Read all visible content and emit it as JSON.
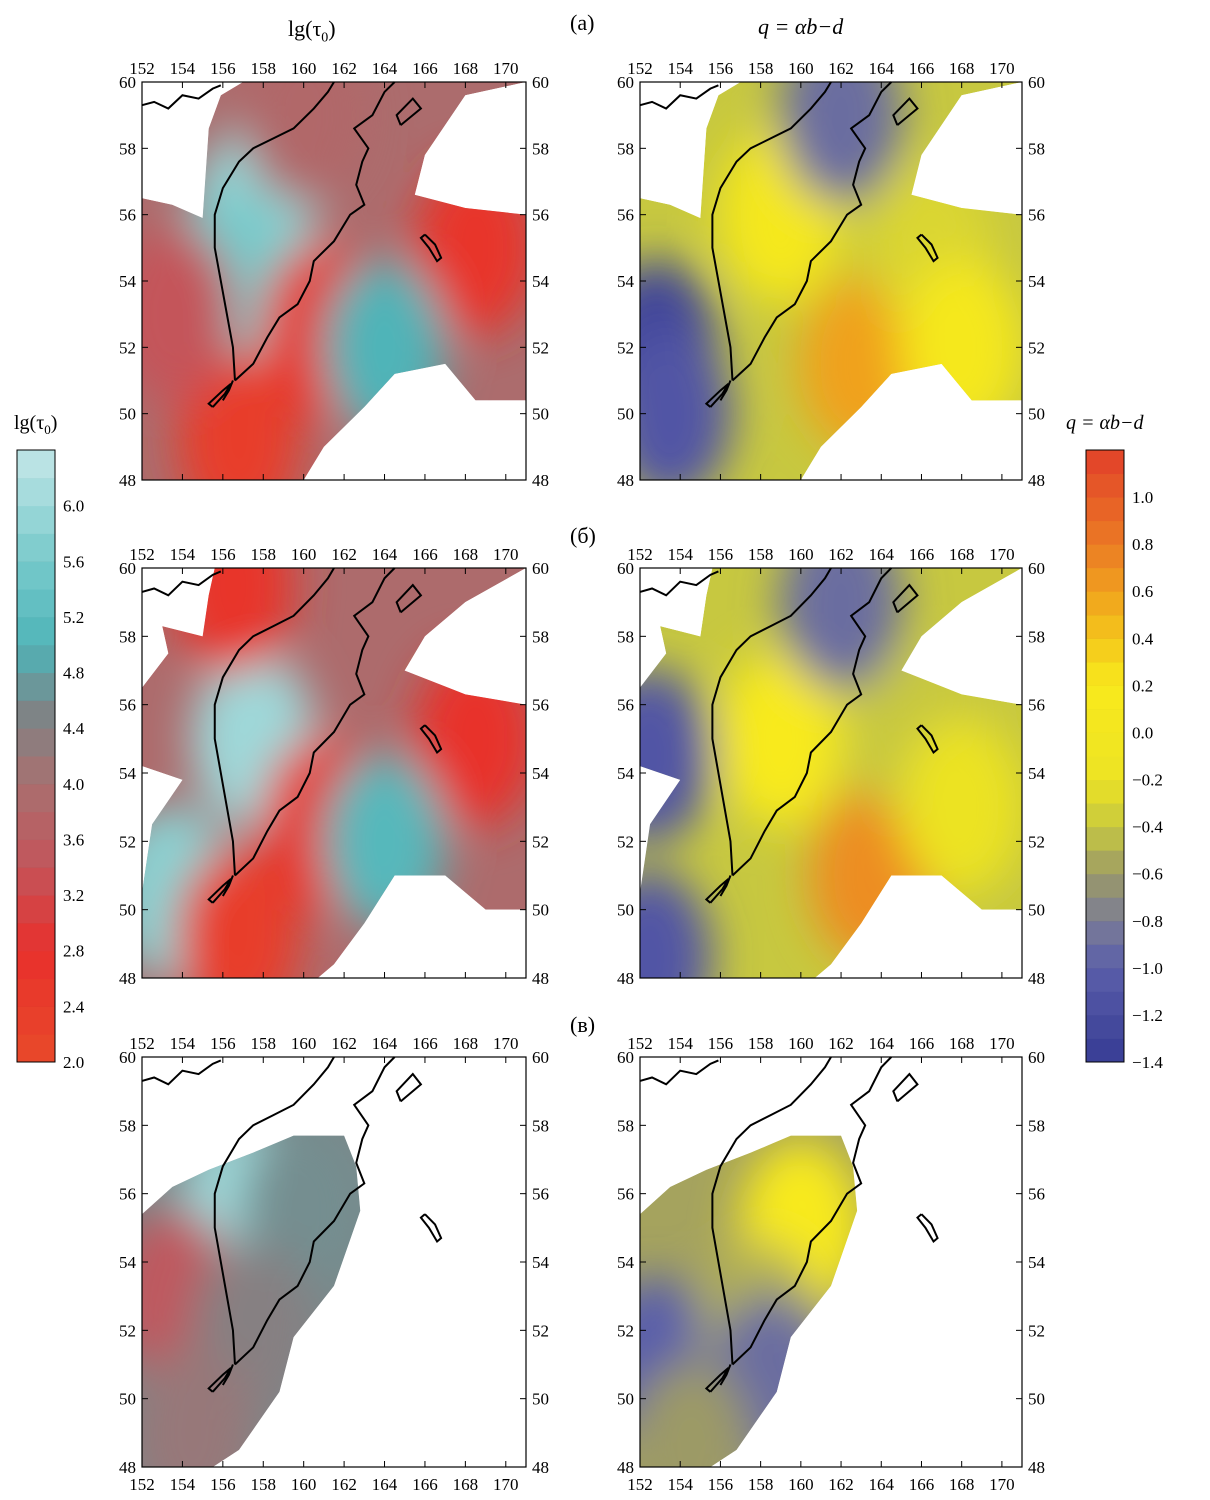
{
  "figure": {
    "column_titles": {
      "left": "lg(τ0)",
      "right": "q = αb−d"
    },
    "panel_labels": [
      "(a)",
      "(б)",
      "(в)"
    ]
  },
  "chart_data": [
    {
      "type": "heatmap",
      "id": "map-a-lgtau",
      "title": "lg(τ0)",
      "panel": "(a)",
      "xlabel": "",
      "ylabel": "",
      "xlim": [
        152,
        171
      ],
      "ylim": [
        48,
        60
      ],
      "x_ticks": [
        152,
        154,
        156,
        158,
        160,
        162,
        164,
        166,
        168,
        170
      ],
      "y_ticks": [
        48,
        50,
        52,
        54,
        56,
        58,
        60
      ],
      "colorbar": "lg(τ0)",
      "regions": [
        {
          "lon": 157.5,
          "lat": 56.0,
          "value": 5.9
        },
        {
          "lon": 156.5,
          "lat": 54.0,
          "value": 5.6
        },
        {
          "lon": 161.0,
          "lat": 52.5,
          "value": 2.6
        },
        {
          "lon": 168.5,
          "lat": 55.0,
          "value": 2.6
        },
        {
          "lon": 156.8,
          "lat": 49.2,
          "value": 2.4
        },
        {
          "lon": 164.0,
          "lat": 52.0,
          "value": 5.0
        },
        {
          "lon": 153.5,
          "lat": 53.0,
          "value": 3.4
        },
        {
          "lon": 160.0,
          "lat": 59.0,
          "value": 3.8
        }
      ]
    },
    {
      "type": "heatmap",
      "id": "map-a-q",
      "title": "q = αb−d",
      "panel": "(a)",
      "xlabel": "",
      "ylabel": "",
      "xlim": [
        152,
        171
      ],
      "ylim": [
        48,
        60
      ],
      "x_ticks": [
        152,
        154,
        156,
        158,
        160,
        162,
        164,
        166,
        168,
        170
      ],
      "y_ticks": [
        48,
        50,
        52,
        54,
        56,
        58,
        60
      ],
      "colorbar": "q = αb−d",
      "regions": [
        {
          "lon": 159.0,
          "lat": 56.0,
          "value": 0.1
        },
        {
          "lon": 152.8,
          "lat": 52.0,
          "value": -1.3
        },
        {
          "lon": 153.5,
          "lat": 50.0,
          "value": -1.1
        },
        {
          "lon": 163.0,
          "lat": 51.5,
          "value": 0.6
        },
        {
          "lon": 162.0,
          "lat": 59.0,
          "value": -0.9
        },
        {
          "lon": 166.5,
          "lat": 55.0,
          "value": -0.3
        },
        {
          "lon": 168.0,
          "lat": 52.0,
          "value": 0.1
        }
      ]
    },
    {
      "type": "heatmap",
      "id": "map-b-lgtau",
      "title": "lg(τ0)",
      "panel": "(б)",
      "xlabel": "",
      "ylabel": "",
      "xlim": [
        152,
        171
      ],
      "ylim": [
        48,
        60
      ],
      "x_ticks": [
        152,
        154,
        156,
        158,
        160,
        162,
        164,
        166,
        168,
        170
      ],
      "y_ticks": [
        48,
        50,
        52,
        54,
        56,
        58,
        60
      ],
      "colorbar": "lg(τ0)",
      "regions": [
        {
          "lon": 157.5,
          "lat": 55.0,
          "value": 6.0
        },
        {
          "lon": 153.5,
          "lat": 50.5,
          "value": 5.8
        },
        {
          "lon": 161.0,
          "lat": 52.5,
          "value": 2.6
        },
        {
          "lon": 168.5,
          "lat": 55.0,
          "value": 2.7
        },
        {
          "lon": 156.8,
          "lat": 49.2,
          "value": 2.4
        },
        {
          "lon": 164.0,
          "lat": 52.0,
          "value": 5.1
        },
        {
          "lon": 156.5,
          "lat": 59.5,
          "value": 2.6
        }
      ]
    },
    {
      "type": "heatmap",
      "id": "map-b-q",
      "title": "q = αb−d",
      "panel": "(б)",
      "xlabel": "",
      "ylabel": "",
      "xlim": [
        152,
        171
      ],
      "ylim": [
        48,
        60
      ],
      "x_ticks": [
        152,
        154,
        156,
        158,
        160,
        162,
        164,
        166,
        168,
        170
      ],
      "y_ticks": [
        48,
        50,
        52,
        54,
        56,
        58,
        60
      ],
      "colorbar": "q = αb−d",
      "regions": [
        {
          "lon": 159.0,
          "lat": 55.0,
          "value": 0.2
        },
        {
          "lon": 152.5,
          "lat": 54.5,
          "value": -1.1
        },
        {
          "lon": 152.5,
          "lat": 48.6,
          "value": -1.1
        },
        {
          "lon": 163.5,
          "lat": 51.0,
          "value": 0.7
        },
        {
          "lon": 162.0,
          "lat": 59.0,
          "value": -0.9
        },
        {
          "lon": 166.0,
          "lat": 55.0,
          "value": -0.4
        },
        {
          "lon": 168.0,
          "lat": 53.0,
          "value": -0.2
        }
      ]
    },
    {
      "type": "heatmap",
      "id": "map-c-lgtau",
      "title": "lg(τ0)",
      "panel": "(в)",
      "xlabel": "",
      "ylabel": "",
      "xlim": [
        152,
        171
      ],
      "ylim": [
        48,
        60
      ],
      "x_ticks": [
        152,
        154,
        156,
        158,
        160,
        162,
        164,
        166,
        168,
        170
      ],
      "y_ticks": [
        48,
        50,
        52,
        54,
        56,
        58,
        60
      ],
      "colorbar": "lg(τ0)",
      "regions": [
        {
          "lon": 157.0,
          "lat": 55.5,
          "value": 6.0
        },
        {
          "lon": 153.5,
          "lat": 53.0,
          "value": 3.5
        },
        {
          "lon": 160.0,
          "lat": 55.5,
          "value": 4.6
        },
        {
          "lon": 157.5,
          "lat": 52.0,
          "value": 4.4
        },
        {
          "lon": 154.5,
          "lat": 49.0,
          "value": 4.2
        }
      ]
    },
    {
      "type": "heatmap",
      "id": "map-c-q",
      "title": "q = αb−d",
      "panel": "(в)",
      "xlabel": "",
      "ylabel": "",
      "xlim": [
        152,
        171
      ],
      "ylim": [
        48,
        60
      ],
      "x_ticks": [
        152,
        154,
        156,
        158,
        160,
        162,
        164,
        166,
        168,
        170
      ],
      "y_ticks": [
        48,
        50,
        52,
        54,
        56,
        58,
        60
      ],
      "colorbar": "q = αb−d",
      "regions": [
        {
          "lon": 160.0,
          "lat": 55.0,
          "value": 0.2
        },
        {
          "lon": 152.8,
          "lat": 51.0,
          "value": -1.0
        },
        {
          "lon": 158.0,
          "lat": 52.0,
          "value": -0.5
        },
        {
          "lon": 158.5,
          "lat": 50.5,
          "value": -0.9
        },
        {
          "lon": 154.5,
          "lat": 48.5,
          "value": -0.6
        }
      ]
    }
  ],
  "colorbars": {
    "lgtau": {
      "title": "lg(τ0)",
      "range": [
        2.0,
        6.4
      ],
      "tick_labels": [
        "6.0",
        "5.6",
        "5.2",
        "4.8",
        "4.4",
        "4.0",
        "3.6",
        "3.2",
        "2.8",
        "2.4",
        "2.0"
      ],
      "tick_values": [
        6.0,
        5.6,
        5.2,
        4.8,
        4.4,
        4.0,
        3.6,
        3.2,
        2.8,
        2.4,
        2.0
      ],
      "stops": [
        {
          "value": 2.0,
          "color": "#e84a2a"
        },
        {
          "value": 2.8,
          "color": "#e8302c"
        },
        {
          "value": 3.4,
          "color": "#c4545a"
        },
        {
          "value": 4.0,
          "color": "#a87070"
        },
        {
          "value": 4.5,
          "color": "#7e8486"
        },
        {
          "value": 5.0,
          "color": "#4fb4b8"
        },
        {
          "value": 5.6,
          "color": "#77cacb"
        },
        {
          "value": 6.4,
          "color": "#c4e6e7"
        }
      ]
    },
    "q": {
      "title": "q = αb−d",
      "range": [
        -1.4,
        1.2
      ],
      "tick_labels": [
        "1.0",
        "0.8",
        "0.6",
        "0.4",
        "0.2",
        "0.0",
        "−0.2",
        "−0.4",
        "−0.6",
        "−0.8",
        "−1.0",
        "−1.2",
        "−1.4"
      ],
      "tick_values": [
        1.0,
        0.8,
        0.6,
        0.4,
        0.2,
        0.0,
        -0.2,
        -0.4,
        -0.6,
        -0.8,
        -1.0,
        -1.2,
        -1.4
      ],
      "stops": [
        {
          "value": -1.4,
          "color": "#363c94"
        },
        {
          "value": -1.0,
          "color": "#5a5eaa"
        },
        {
          "value": -0.8,
          "color": "#7b7c96"
        },
        {
          "value": -0.6,
          "color": "#9c9a66"
        },
        {
          "value": -0.4,
          "color": "#c7c840"
        },
        {
          "value": -0.2,
          "color": "#ece324"
        },
        {
          "value": 0.2,
          "color": "#f8ea1c"
        },
        {
          "value": 0.5,
          "color": "#f2b41c"
        },
        {
          "value": 0.8,
          "color": "#eb7a24"
        },
        {
          "value": 1.2,
          "color": "#e2402a"
        }
      ]
    }
  }
}
